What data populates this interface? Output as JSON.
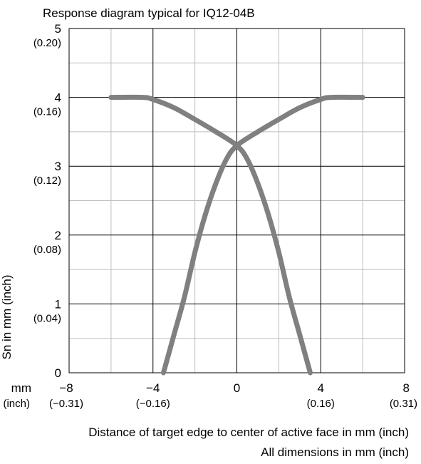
{
  "chart_data": {
    "type": "line",
    "title": "Response diagram typical for IQ12-04B",
    "xlabel": "Distance of target edge to center of active face in mm (inch)",
    "ylabel": "Sn in mm (inch)",
    "footnote": "All dimensions in mm (inch)",
    "x_unit_label": "mm",
    "x_unit_sub_label": "(inch)",
    "xlim": [
      -8,
      8
    ],
    "ylim": [
      0,
      5
    ],
    "grid": true,
    "x_ticks": [
      {
        "value": -8,
        "label": "−8",
        "sub": "(−0.31)"
      },
      {
        "value": -4,
        "label": "−4",
        "sub": "(−0.16)"
      },
      {
        "value": 0,
        "label": "0",
        "sub": ""
      },
      {
        "value": 4,
        "label": "4",
        "sub": "(0.16)"
      },
      {
        "value": 8,
        "label": "8",
        "sub": "(0.31)"
      }
    ],
    "y_ticks": [
      {
        "value": 0,
        "label": "0",
        "sub": ""
      },
      {
        "value": 1,
        "label": "1",
        "sub": "(0.04)"
      },
      {
        "value": 2,
        "label": "2",
        "sub": "(0.08)"
      },
      {
        "value": 3,
        "label": "3",
        "sub": "(0.12)"
      },
      {
        "value": 4,
        "label": "4",
        "sub": "(0.16)"
      },
      {
        "value": 5,
        "label": "5",
        "sub": "(0.20)"
      }
    ],
    "series": [
      {
        "color": "#808080",
        "x": [
          -6.0,
          -4.5,
          -4.0,
          -3.0,
          -2.0,
          -1.0,
          0.0,
          0.5,
          1.0,
          1.5,
          2.0,
          2.5,
          3.0,
          3.5
        ],
        "y": [
          4.0,
          4.0,
          3.97,
          3.85,
          3.68,
          3.5,
          3.3,
          3.1,
          2.75,
          2.3,
          1.75,
          1.1,
          0.55,
          0.0
        ]
      },
      {
        "color": "#808080",
        "x": [
          6.0,
          4.5,
          4.0,
          3.0,
          2.0,
          1.0,
          0.0,
          -0.5,
          -1.0,
          -1.5,
          -2.0,
          -2.5,
          -3.0,
          -3.5
        ],
        "y": [
          4.0,
          4.0,
          3.97,
          3.85,
          3.68,
          3.5,
          3.3,
          3.1,
          2.75,
          2.3,
          1.75,
          1.1,
          0.55,
          0.0
        ]
      }
    ]
  }
}
